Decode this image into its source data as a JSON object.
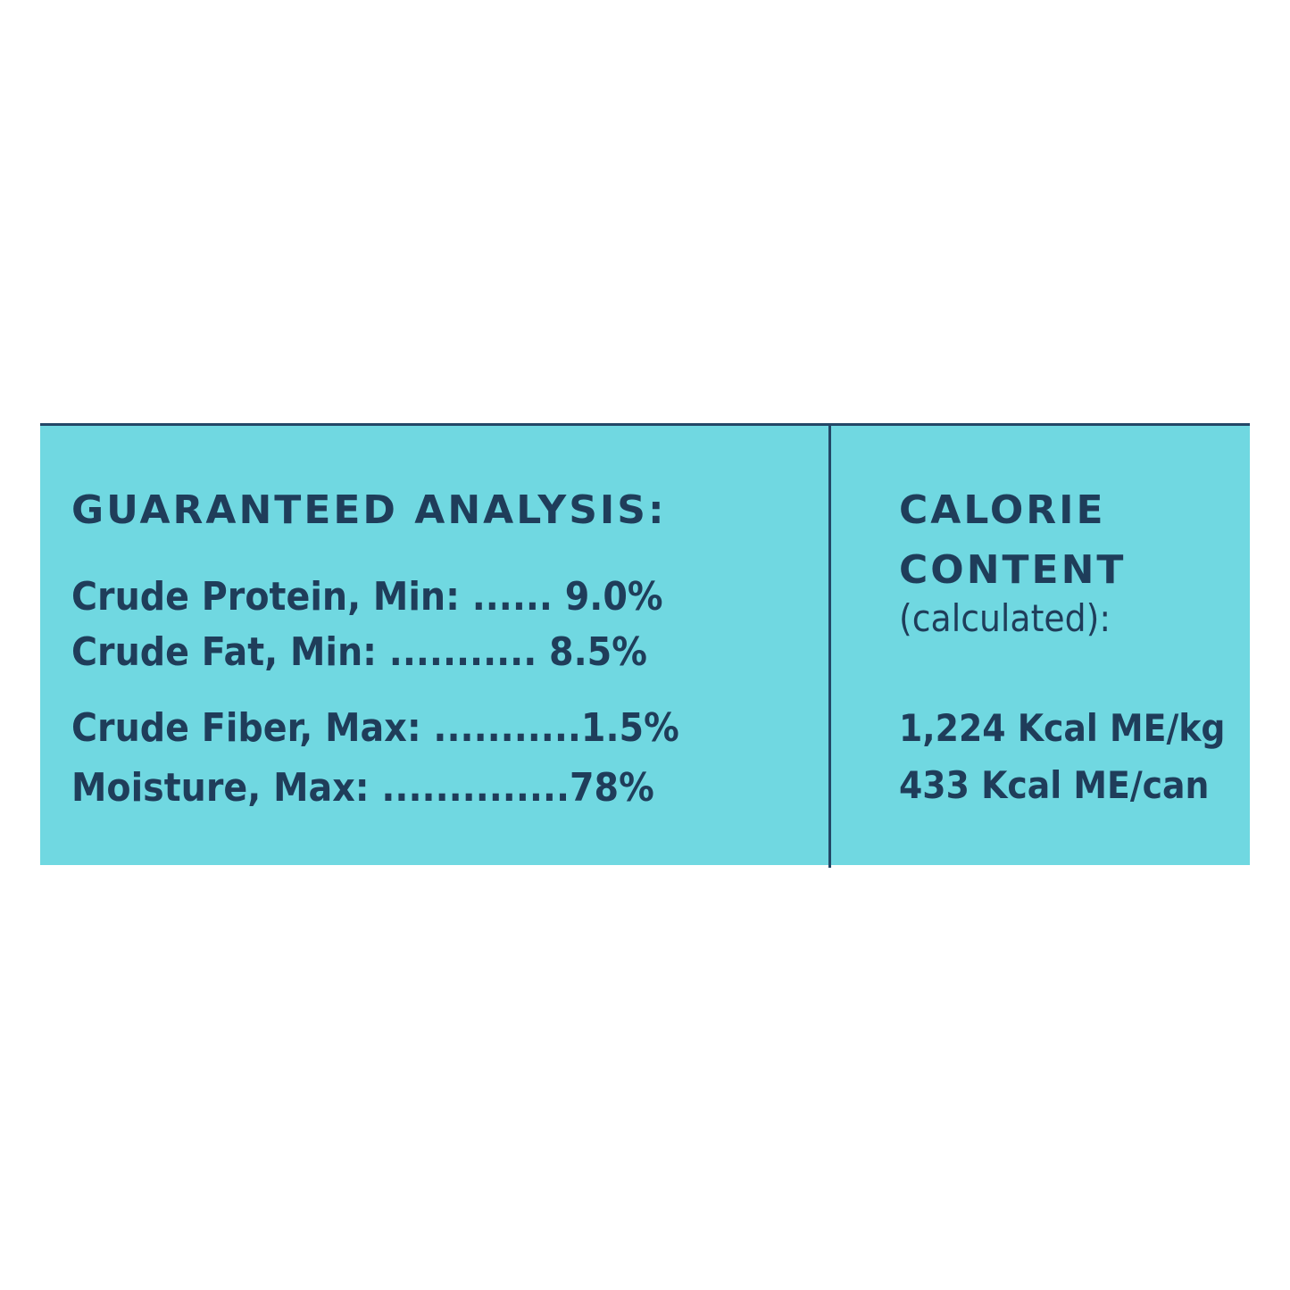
{
  "colors": {
    "panel_background": "#70d8e1",
    "text": "#1f3d5a",
    "rule": "#234766"
  },
  "guaranteed_analysis": {
    "heading": "GUARANTEED ANALYSIS:",
    "rows": [
      {
        "text": "Crude Protein, Min: ...... 9.0%"
      },
      {
        "text": "Crude Fat, Min: ........... 8.5%"
      },
      {
        "text": "Crude Fiber, Max: ...........1.5%"
      },
      {
        "text": "Moisture, Max: ..............78%"
      }
    ]
  },
  "calorie_content": {
    "heading_line1": "CALORIE",
    "heading_line2": "CONTENT",
    "subheading": "(calculated):",
    "values": [
      "1,224 Kcal ME/kg",
      "433 Kcal ME/can"
    ]
  }
}
